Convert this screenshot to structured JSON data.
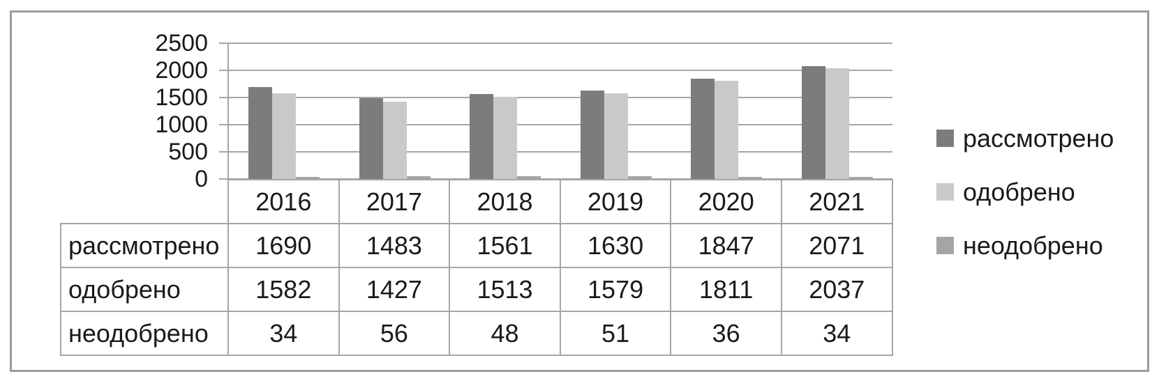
{
  "frame": {
    "border_color": "#9c9c9c",
    "background": "#ffffff"
  },
  "chart_data": {
    "type": "bar",
    "title": "",
    "xlabel": "",
    "ylabel": "",
    "categories": [
      "2016",
      "2017",
      "2018",
      "2019",
      "2020",
      "2021"
    ],
    "series": [
      {
        "name": "рассмотрено",
        "color": "#7c7c7c",
        "values": [
          1690,
          1483,
          1561,
          1630,
          1847,
          2071
        ]
      },
      {
        "name": "одобрено",
        "color": "#c9c9c9",
        "values": [
          1582,
          1427,
          1513,
          1579,
          1811,
          2037
        ]
      },
      {
        "name": "неодобрено",
        "color": "#a5a5a5",
        "values": [
          34,
          56,
          48,
          51,
          36,
          34
        ]
      }
    ],
    "ylim": [
      0,
      2500
    ],
    "yticks": [
      0,
      500,
      1000,
      1500,
      2000,
      2500
    ],
    "grid": true,
    "gridline_color": "#a6a6a6",
    "legend_position": "right",
    "data_table_shown": true
  }
}
